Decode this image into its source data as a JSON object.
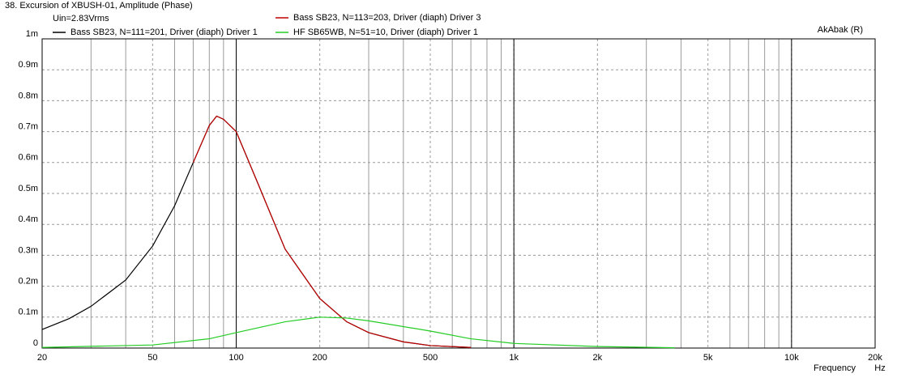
{
  "chart_data": {
    "type": "line",
    "title": "38. Excursion of XBUSH-01, Amplitude (Phase)",
    "subtitle": "Uin=2.83Vrms",
    "annotation": "AkAbak (R)",
    "x_label": "Frequency",
    "x_unit": "Hz",
    "xscale": "log",
    "xlim": [
      20,
      20000
    ],
    "ylim": [
      0,
      1
    ],
    "xticks": [
      20,
      50,
      100,
      200,
      500,
      {
        "value": 1000,
        "label": "1k"
      },
      {
        "value": 2000,
        "label": "2k"
      },
      {
        "value": 5000,
        "label": "5k"
      },
      {
        "value": 10000,
        "label": "10k"
      },
      {
        "value": 20000,
        "label": "20k"
      }
    ],
    "xminorticks": [
      30,
      40,
      60,
      70,
      80,
      90,
      300,
      400,
      600,
      700,
      800,
      900,
      3000,
      4000,
      6000,
      7000,
      8000,
      9000
    ],
    "xmajorticks": [
      100,
      1000,
      10000
    ],
    "yticks": [
      0,
      {
        "value": 0.1,
        "label": "0.1m"
      },
      {
        "value": 0.2,
        "label": "0.2m"
      },
      {
        "value": 0.3,
        "label": "0.3m"
      },
      {
        "value": 0.4,
        "label": "0.4m"
      },
      {
        "value": 0.5,
        "label": "0.5m"
      },
      {
        "value": 0.6,
        "label": "0.6m"
      },
      {
        "value": 0.7,
        "label": "0.7m"
      },
      {
        "value": 0.8,
        "label": "0.8m"
      },
      {
        "value": 0.9,
        "label": "0.9m"
      },
      {
        "value": 1,
        "label": "1m"
      }
    ],
    "grid": true,
    "series": [
      {
        "name": "Bass SB23, N=113=203, Driver (diaph) Driver 3",
        "color": "#c00000",
        "x": [
          70,
          80,
          85,
          90,
          100,
          120,
          150,
          200,
          250,
          300,
          400,
          500,
          700
        ],
        "values": [
          0.6,
          0.72,
          0.75,
          0.74,
          0.7,
          0.53,
          0.32,
          0.16,
          0.085,
          0.05,
          0.02,
          0.008,
          0.002
        ]
      },
      {
        "name": "Bass SB23, N=111=201, Driver (diaph) Driver 1",
        "color": "#000000",
        "x": [
          20,
          25,
          30,
          40,
          50,
          60,
          70,
          80,
          85,
          90,
          100,
          120,
          150,
          200,
          250,
          300,
          400,
          500,
          700
        ],
        "values": [
          0.06,
          0.095,
          0.135,
          0.22,
          0.33,
          0.46,
          0.6,
          0.72,
          0.75,
          0.74,
          0.7,
          0.53,
          0.32,
          0.16,
          0.085,
          0.05,
          0.02,
          0.008,
          0.002
        ]
      },
      {
        "name": "HF SB65WB, N=51=10, Driver (diaph) Driver 1",
        "color": "#22cc22",
        "x": [
          20,
          50,
          80,
          100,
          150,
          200,
          250,
          300,
          500,
          700,
          1000,
          2000,
          3800
        ],
        "values": [
          0.002,
          0.01,
          0.03,
          0.05,
          0.085,
          0.1,
          0.097,
          0.088,
          0.055,
          0.03,
          0.015,
          0.005,
          0.001
        ]
      }
    ]
  }
}
